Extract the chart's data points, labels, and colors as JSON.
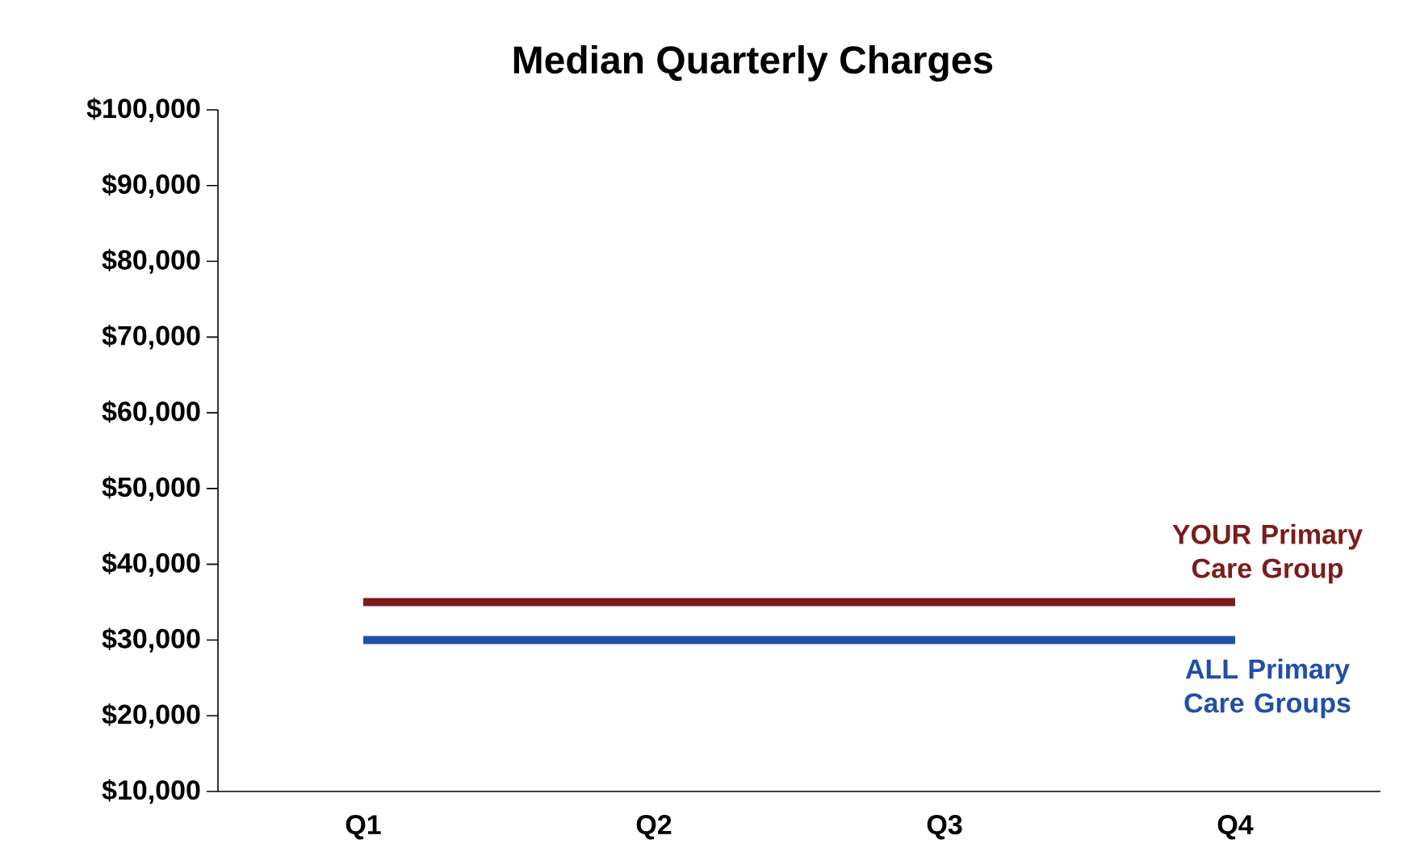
{
  "chart_data": {
    "type": "line",
    "title": "Median Quarterly Charges",
    "categories": [
      "Q1",
      "Q2",
      "Q3",
      "Q4"
    ],
    "series": [
      {
        "name": "YOUR Primary Care Group",
        "color": "#7b1c1c",
        "values": [
          35000,
          35000,
          35000,
          35000
        ]
      },
      {
        "name": "ALL Primary Care Groups",
        "color": "#1f4fa8",
        "values": [
          30000,
          30000,
          30000,
          30000
        ]
      }
    ],
    "ylim": [
      10000,
      100000
    ],
    "yticks": [
      {
        "value": 10000,
        "label": "$10,000"
      },
      {
        "value": 20000,
        "label": "$20,000"
      },
      {
        "value": 30000,
        "label": "$30,000"
      },
      {
        "value": 40000,
        "label": "$40,000"
      },
      {
        "value": 50000,
        "label": "$50,000"
      },
      {
        "value": 60000,
        "label": "$60,000"
      },
      {
        "value": 70000,
        "label": "$70,000"
      },
      {
        "value": 80000,
        "label": "$80,000"
      },
      {
        "value": 90000,
        "label": "$90,000"
      },
      {
        "value": 100000,
        "label": "$100,000"
      }
    ],
    "legend": false,
    "grid": false,
    "marker": "none",
    "line_style": "solid"
  }
}
